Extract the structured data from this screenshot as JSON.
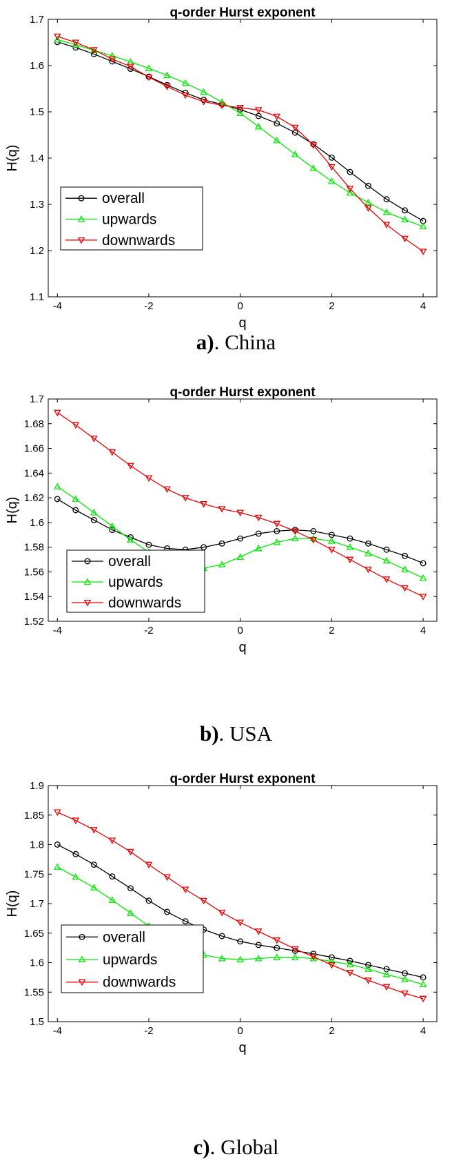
{
  "charts": [
    {
      "caption": {
        "letter": "a)",
        "country": ". China"
      },
      "chart_data": {
        "type": "line",
        "title": "q-order Hurst exponent",
        "xlabel": "q",
        "ylabel": "H(q)",
        "xlim": [
          -4.2,
          4.3
        ],
        "ylim": [
          1.1,
          1.7
        ],
        "xticks": [
          -4,
          -2,
          0,
          2,
          4
        ],
        "yticks": [
          1.1,
          1.2,
          1.3,
          1.4,
          1.5,
          1.6,
          1.7
        ],
        "ytick_labels": [
          "1.1",
          "1.2",
          "1.3",
          "1.4",
          "1.5",
          "1.6",
          "1.7"
        ],
        "grid": false,
        "legend_position": "bottom-left",
        "x": [
          -4,
          -3.6,
          -3.2,
          -2.8,
          -2.4,
          -2,
          -1.6,
          -1.2,
          -0.8,
          -0.4,
          0,
          0.4,
          0.8,
          1.2,
          1.6,
          2,
          2.4,
          2.8,
          3.2,
          3.6,
          4
        ],
        "series": [
          {
            "name": "overall",
            "color": "#000000",
            "marker": "circle",
            "values": [
              1.651,
              1.639,
              1.625,
              1.609,
              1.593,
              1.576,
              1.558,
              1.541,
              1.526,
              1.516,
              1.505,
              1.491,
              1.475,
              1.455,
              1.43,
              1.401,
              1.37,
              1.34,
              1.311,
              1.287,
              1.264
            ]
          },
          {
            "name": "upwards",
            "color": "#00ee00",
            "marker": "triangle-up",
            "values": [
              1.656,
              1.645,
              1.633,
              1.621,
              1.608,
              1.594,
              1.579,
              1.562,
              1.543,
              1.521,
              1.497,
              1.468,
              1.438,
              1.408,
              1.378,
              1.35,
              1.325,
              1.304,
              1.283,
              1.267,
              1.252
            ]
          },
          {
            "name": "downwards",
            "color": "#ee0000",
            "marker": "triangle-down",
            "values": [
              1.663,
              1.65,
              1.634,
              1.614,
              1.598,
              1.575,
              1.555,
              1.536,
              1.522,
              1.514,
              1.509,
              1.504,
              1.49,
              1.466,
              1.428,
              1.381,
              1.334,
              1.292,
              1.256,
              1.226,
              1.198
            ]
          }
        ]
      }
    },
    {
      "caption": {
        "letter": "b)",
        "country": ". USA"
      },
      "chart_data": {
        "type": "line",
        "title": "q-order Hurst exponent",
        "xlabel": "q",
        "ylabel": "H(q)",
        "xlim": [
          -4.2,
          4.3
        ],
        "ylim": [
          1.52,
          1.7
        ],
        "xticks": [
          -4,
          -2,
          0,
          2,
          4
        ],
        "yticks": [
          1.52,
          1.54,
          1.56,
          1.58,
          1.6,
          1.62,
          1.64,
          1.66,
          1.68,
          1.7
        ],
        "ytick_labels": [
          "1.52",
          "1.54",
          "1.56",
          "1.58",
          "1.6",
          "1.62",
          "1.64",
          "1.66",
          "1.68",
          "1.7"
        ],
        "grid": false,
        "legend_position": "bottom-left",
        "x": [
          -4,
          -3.6,
          -3.2,
          -2.8,
          -2.4,
          -2,
          -1.6,
          -1.2,
          -0.8,
          -0.4,
          0,
          0.4,
          0.8,
          1.2,
          1.6,
          2,
          2.4,
          2.8,
          3.2,
          3.6,
          4
        ],
        "series": [
          {
            "name": "overall",
            "color": "#000000",
            "marker": "circle",
            "values": [
              1.619,
              1.61,
              1.602,
              1.594,
              1.588,
              1.582,
              1.579,
              1.578,
              1.58,
              1.583,
              1.587,
              1.591,
              1.593,
              1.594,
              1.593,
              1.59,
              1.587,
              1.583,
              1.578,
              1.573,
              1.567
            ]
          },
          {
            "name": "upwards",
            "color": "#00ee00",
            "marker": "triangle-up",
            "values": [
              1.629,
              1.619,
              1.608,
              1.597,
              1.586,
              1.576,
              1.568,
              1.563,
              1.563,
              1.566,
              1.572,
              1.579,
              1.584,
              1.587,
              1.587,
              1.585,
              1.58,
              1.575,
              1.569,
              1.562,
              1.555
            ]
          },
          {
            "name": "downwards",
            "color": "#ee0000",
            "marker": "triangle-down",
            "values": [
              1.689,
              1.679,
              1.668,
              1.657,
              1.646,
              1.636,
              1.627,
              1.62,
              1.615,
              1.611,
              1.608,
              1.604,
              1.599,
              1.593,
              1.586,
              1.578,
              1.57,
              1.562,
              1.554,
              1.547,
              1.54
            ]
          }
        ]
      }
    },
    {
      "caption": {
        "letter": "c)",
        "country": ". Global"
      },
      "chart_data": {
        "type": "line",
        "title": "q-order Hurst exponent",
        "xlabel": "q",
        "ylabel": "H(q)",
        "xlim": [
          -4.2,
          4.3
        ],
        "ylim": [
          1.5,
          1.9
        ],
        "xticks": [
          -4,
          -2,
          0,
          2,
          4
        ],
        "yticks": [
          1.5,
          1.55,
          1.6,
          1.65,
          1.7,
          1.75,
          1.8,
          1.85,
          1.9
        ],
        "ytick_labels": [
          "1.5",
          "1.55",
          "1.6",
          "1.65",
          "1.7",
          "1.75",
          "1.8",
          "1.85",
          "1.9"
        ],
        "grid": false,
        "legend_position": "bottom-left",
        "x": [
          -4,
          -3.6,
          -3.2,
          -2.8,
          -2.4,
          -2,
          -1.6,
          -1.2,
          -0.8,
          -0.4,
          0,
          0.4,
          0.8,
          1.2,
          1.6,
          2,
          2.4,
          2.8,
          3.2,
          3.6,
          4
        ],
        "series": [
          {
            "name": "overall",
            "color": "#000000",
            "marker": "circle",
            "values": [
              1.8,
              1.784,
              1.766,
              1.746,
              1.726,
              1.705,
              1.686,
              1.67,
              1.656,
              1.645,
              1.636,
              1.63,
              1.625,
              1.62,
              1.615,
              1.609,
              1.603,
              1.596,
              1.589,
              1.582,
              1.575
            ]
          },
          {
            "name": "upwards",
            "color": "#00ee00",
            "marker": "triangle-up",
            "values": [
              1.762,
              1.745,
              1.727,
              1.706,
              1.684,
              1.662,
              1.642,
              1.625,
              1.613,
              1.607,
              1.605,
              1.607,
              1.609,
              1.609,
              1.607,
              1.602,
              1.597,
              1.589,
              1.58,
              1.572,
              1.563
            ]
          },
          {
            "name": "downwards",
            "color": "#ee0000",
            "marker": "triangle-down",
            "values": [
              1.855,
              1.841,
              1.825,
              1.807,
              1.788,
              1.766,
              1.745,
              1.724,
              1.705,
              1.685,
              1.668,
              1.653,
              1.638,
              1.623,
              1.61,
              1.596,
              1.583,
              1.57,
              1.559,
              1.548,
              1.539
            ]
          }
        ]
      }
    }
  ]
}
